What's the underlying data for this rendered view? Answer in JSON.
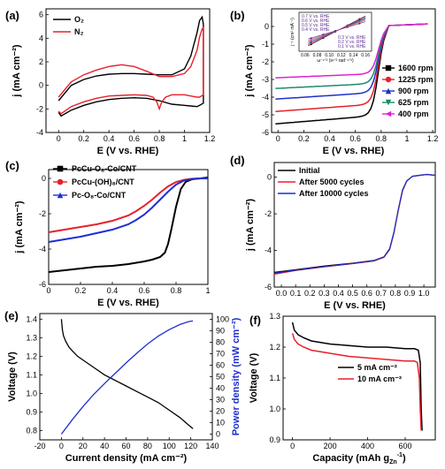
{
  "chart_data": [
    {
      "id": "a",
      "panel": "(a)",
      "type": "line",
      "xlabel": "E (V vs. RHE)",
      "ylabel": "j (mA cm⁻²)",
      "xlim": [
        -0.1,
        1.2
      ],
      "ylim": [
        -4,
        6.5
      ],
      "xticks": [
        0.0,
        0.2,
        0.4,
        0.6,
        0.8,
        1.0,
        1.2
      ],
      "yticks": [
        -4,
        -2,
        0,
        2,
        4,
        6
      ],
      "legend": "top-left",
      "series": [
        {
          "name": "O₂",
          "color": "#000000",
          "x": [
            0.0,
            0.1,
            0.2,
            0.3,
            0.4,
            0.5,
            0.6,
            0.7,
            0.8,
            0.9,
            1.0,
            1.05,
            1.1,
            1.12,
            1.14,
            1.15,
            1.15,
            1.12,
            1.1,
            1.05,
            1.0,
            0.9,
            0.8,
            0.7,
            0.6,
            0.5,
            0.4,
            0.3,
            0.2,
            0.1,
            0.02,
            0.0
          ],
          "y": [
            -1.3,
            0.0,
            0.5,
            0.8,
            0.95,
            1.0,
            1.0,
            0.95,
            0.9,
            0.9,
            1.4,
            2.5,
            4.5,
            5.5,
            5.8,
            5.2,
            -1.5,
            -1.7,
            -1.8,
            -1.75,
            -1.7,
            -1.6,
            -1.3,
            -1.1,
            -1.05,
            -1.1,
            -1.2,
            -1.4,
            -1.7,
            -2.1,
            -2.6,
            -2.3
          ]
        },
        {
          "name": "N₂",
          "color": "#e8202a",
          "x": [
            0.0,
            0.1,
            0.2,
            0.3,
            0.4,
            0.5,
            0.6,
            0.7,
            0.8,
            0.9,
            1.0,
            1.05,
            1.1,
            1.12,
            1.14,
            1.15,
            1.15,
            1.12,
            1.1,
            1.05,
            1.0,
            0.9,
            0.85,
            0.82,
            0.8,
            0.78,
            0.75,
            0.7,
            0.6,
            0.5,
            0.4,
            0.3,
            0.2,
            0.1,
            0.02,
            0.0
          ],
          "y": [
            -1.0,
            0.3,
            0.9,
            1.3,
            1.6,
            1.75,
            1.6,
            1.2,
            0.75,
            0.75,
            1.0,
            1.6,
            3.0,
            4.1,
            4.8,
            4.9,
            -0.8,
            -1.0,
            -1.0,
            -0.9,
            -0.8,
            -0.8,
            -1.0,
            -1.4,
            -2.0,
            -1.4,
            -1.0,
            -0.85,
            -0.8,
            -0.85,
            -0.9,
            -1.1,
            -1.4,
            -1.8,
            -2.4,
            -2.2
          ]
        }
      ]
    },
    {
      "id": "b",
      "panel": "(b)",
      "type": "line",
      "xlabel": "E (V vs. RHE)",
      "ylabel": "j (mA cm⁻²)",
      "xlim": [
        -0.05,
        1.22
      ],
      "ylim": [
        -6,
        1
      ],
      "xticks": [
        0.0,
        0.2,
        0.4,
        0.6,
        0.8,
        1.0,
        1.2
      ],
      "yticks": [
        -6,
        -5,
        -4,
        -3,
        -2,
        -1,
        0
      ],
      "legend": "right",
      "series": [
        {
          "name": "1600 rpm",
          "color": "#000000",
          "marker": "square",
          "plateau": -5.5,
          "slope": 1.0
        },
        {
          "name": "1225 rpm",
          "color": "#e8202a",
          "marker": "circle",
          "plateau": -4.8,
          "slope": 0.9
        },
        {
          "name": "900 rpm",
          "color": "#1f2fd0",
          "marker": "triangle",
          "plateau": -4.1,
          "slope": 0.8
        },
        {
          "name": "625 rpm",
          "color": "#1a8a6a",
          "marker": "tri-down",
          "plateau": -3.5,
          "slope": 0.6
        },
        {
          "name": "400 rpm",
          "color": "#e020d0",
          "marker": "tri-left",
          "plateau": -2.9,
          "slope": 0.5
        }
      ],
      "inset": {
        "xlabel": "ω⁻¹ᐟ² (s¹ᐟ² rad⁻¹ᐟ²)",
        "ylabel": "j⁻¹ (cm² mA⁻¹)",
        "xticks": [
          0.06,
          0.08,
          0.1,
          0.12,
          0.14,
          0.16
        ],
        "legend_left": [
          "0.7 V vs. RHE",
          "0.6 V vs. RHE",
          "0.5 V vs. RHE",
          "0.4 V vs. RHE"
        ],
        "legend_right": [
          "0.3 V vs. RHE",
          "0.2 V vs. RHE",
          "0.1 V vs. RHE"
        ]
      }
    },
    {
      "id": "c",
      "panel": "(c)",
      "type": "line",
      "xlabel": "E (V vs. RHE)",
      "ylabel": "j (mA cm⁻²)",
      "xlim": [
        0.0,
        1.0
      ],
      "ylim": [
        -6,
        0.5
      ],
      "xticks": [
        0.0,
        0.2,
        0.4,
        0.6,
        0.8,
        1.0
      ],
      "yticks": [
        -6,
        -4,
        -2,
        0
      ],
      "legend": "top-left",
      "series": [
        {
          "name": "PcCu-O₈-Co/CNT",
          "color": "#000000",
          "marker": "square",
          "x": [
            0.0,
            0.1,
            0.2,
            0.3,
            0.4,
            0.5,
            0.6,
            0.65,
            0.7,
            0.73,
            0.75,
            0.77,
            0.8,
            0.83,
            0.86,
            0.9,
            0.95,
            1.0
          ],
          "y": [
            -5.3,
            -5.2,
            -5.1,
            -5.0,
            -4.95,
            -4.85,
            -4.7,
            -4.6,
            -4.45,
            -4.2,
            -3.7,
            -2.9,
            -1.6,
            -0.6,
            -0.2,
            -0.05,
            0.0,
            0.05
          ]
        },
        {
          "name": "PcCu-(OH)₈/CNT",
          "color": "#e8202a",
          "marker": "circle",
          "x": [
            0.0,
            0.1,
            0.2,
            0.3,
            0.4,
            0.5,
            0.55,
            0.6,
            0.65,
            0.7,
            0.75,
            0.8,
            0.85,
            0.9,
            0.95,
            1.0
          ],
          "y": [
            -3.05,
            -2.9,
            -2.75,
            -2.6,
            -2.4,
            -2.1,
            -1.85,
            -1.55,
            -1.2,
            -0.8,
            -0.45,
            -0.2,
            -0.08,
            -0.02,
            0.0,
            0.0
          ]
        },
        {
          "name": "Pc-O₈-Co/CNT",
          "color": "#1f2fd0",
          "marker": "triangle",
          "x": [
            0.0,
            0.1,
            0.2,
            0.3,
            0.4,
            0.5,
            0.55,
            0.6,
            0.65,
            0.7,
            0.75,
            0.8,
            0.85,
            0.9,
            0.95,
            1.0
          ],
          "y": [
            -3.6,
            -3.45,
            -3.3,
            -3.1,
            -2.9,
            -2.6,
            -2.35,
            -2.05,
            -1.65,
            -1.2,
            -0.75,
            -0.35,
            -0.12,
            -0.03,
            0.0,
            0.0
          ]
        }
      ]
    },
    {
      "id": "d",
      "panel": "(d)",
      "type": "line",
      "xlabel": "E (V vs. RHE)",
      "ylabel": "j (mA cm⁻²)",
      "xlim": [
        -0.05,
        1.08
      ],
      "ylim": [
        -6,
        0.8
      ],
      "xticks": [
        0.0,
        0.1,
        0.2,
        0.3,
        0.4,
        0.5,
        0.6,
        0.7,
        0.8,
        0.9,
        1.0
      ],
      "yticks": [
        -6,
        -4,
        -2,
        0
      ],
      "legend": "top-left",
      "series": [
        {
          "name": "Initial",
          "color": "#000000",
          "x": [
            -0.05,
            0.1,
            0.3,
            0.5,
            0.65,
            0.72,
            0.76,
            0.79,
            0.82,
            0.85,
            0.88,
            0.92,
            0.97,
            1.02,
            1.08
          ],
          "y": [
            -5.2,
            -5.05,
            -4.85,
            -4.7,
            -4.55,
            -4.35,
            -3.9,
            -3.0,
            -1.8,
            -0.7,
            -0.2,
            0.05,
            0.1,
            0.15,
            0.1
          ]
        },
        {
          "name": "After 5000 cycles",
          "color": "#e8202a",
          "x": [
            -0.05,
            0.1,
            0.3,
            0.5,
            0.65,
            0.72,
            0.76,
            0.79,
            0.82,
            0.85,
            0.88,
            0.92,
            0.97,
            1.02,
            1.08
          ],
          "y": [
            -5.3,
            -5.1,
            -4.9,
            -4.72,
            -4.58,
            -4.38,
            -3.95,
            -3.05,
            -1.85,
            -0.75,
            -0.22,
            0.05,
            0.1,
            0.15,
            0.1
          ]
        },
        {
          "name": "After 10000 cycles",
          "color": "#1f2fd0",
          "x": [
            -0.05,
            0.1,
            0.3,
            0.5,
            0.65,
            0.72,
            0.76,
            0.79,
            0.82,
            0.85,
            0.88,
            0.92,
            0.97,
            1.02,
            1.08
          ],
          "y": [
            -5.25,
            -5.08,
            -4.88,
            -4.71,
            -4.56,
            -4.36,
            -3.92,
            -3.02,
            -1.82,
            -0.72,
            -0.21,
            0.05,
            0.1,
            0.15,
            0.1
          ]
        }
      ]
    },
    {
      "id": "e",
      "panel": "(e)",
      "type": "line",
      "xlabel": "Current density (mA cm⁻²)",
      "ylabel": "Voltage (V)",
      "y2label": "Power density (mW cm⁻²)",
      "xlim": [
        -20,
        140
      ],
      "ylim": [
        0.75,
        1.43
      ],
      "y2lim": [
        -5,
        105
      ],
      "xticks": [
        -20,
        0,
        20,
        40,
        60,
        80,
        100,
        120,
        140
      ],
      "yticks": [
        0.8,
        0.9,
        1.0,
        1.1,
        1.2,
        1.3,
        1.4
      ],
      "y2ticks": [
        0,
        10,
        20,
        30,
        40,
        50,
        60,
        70,
        80,
        90,
        100
      ],
      "series": [
        {
          "name": "Voltage",
          "color": "#000000",
          "axis": "left",
          "x": [
            0,
            1,
            2,
            4,
            7,
            10,
            15,
            20,
            30,
            40,
            50,
            60,
            70,
            80,
            90,
            100,
            110,
            118,
            122
          ],
          "y": [
            1.4,
            1.34,
            1.31,
            1.28,
            1.25,
            1.23,
            1.2,
            1.18,
            1.14,
            1.1,
            1.07,
            1.04,
            1.01,
            0.98,
            0.95,
            0.91,
            0.87,
            0.83,
            0.81
          ]
        },
        {
          "name": "Power density",
          "color": "#1f2fd0",
          "axis": "right",
          "x": [
            0,
            10,
            20,
            30,
            40,
            50,
            60,
            70,
            80,
            90,
            100,
            110,
            118,
            122
          ],
          "y": [
            0,
            12.5,
            24,
            34.5,
            44,
            53,
            62,
            70.5,
            78.5,
            85.5,
            91,
            95.5,
            98,
            98.5
          ]
        }
      ]
    },
    {
      "id": "f",
      "panel": "(f)",
      "type": "line",
      "xlabel": "Capacity (mAh g₂ₙ⁻¹)",
      "xlabel_main": "Capacity (mAh g",
      "xlabel_sub": "Zn",
      "xlabel_sup": "-1",
      "xlabel_close": ")",
      "ylabel": "Voltage (V)",
      "xlim": [
        -50,
        760
      ],
      "ylim": [
        0.9,
        1.3
      ],
      "xticks": [
        0,
        200,
        400,
        600
      ],
      "yticks": [
        0.9,
        1.0,
        1.1,
        1.2,
        1.3
      ],
      "legend": "center-right",
      "series": [
        {
          "name": "5 mA cm⁻²",
          "color": "#000000",
          "x": [
            0,
            10,
            30,
            60,
            100,
            200,
            300,
            400,
            500,
            600,
            650,
            670,
            680,
            685,
            690
          ],
          "y": [
            1.28,
            1.255,
            1.24,
            1.23,
            1.22,
            1.21,
            1.205,
            1.2,
            1.2,
            1.195,
            1.195,
            1.19,
            1.15,
            1.0,
            0.93
          ]
        },
        {
          "name": "10 mA cm⁻²",
          "color": "#e8202a",
          "x": [
            0,
            10,
            30,
            60,
            100,
            200,
            300,
            400,
            500,
            600,
            650,
            665,
            675,
            680,
            685
          ],
          "y": [
            1.245,
            1.225,
            1.21,
            1.2,
            1.19,
            1.18,
            1.17,
            1.165,
            1.16,
            1.155,
            1.155,
            1.15,
            1.1,
            1.0,
            0.93
          ]
        }
      ]
    }
  ]
}
